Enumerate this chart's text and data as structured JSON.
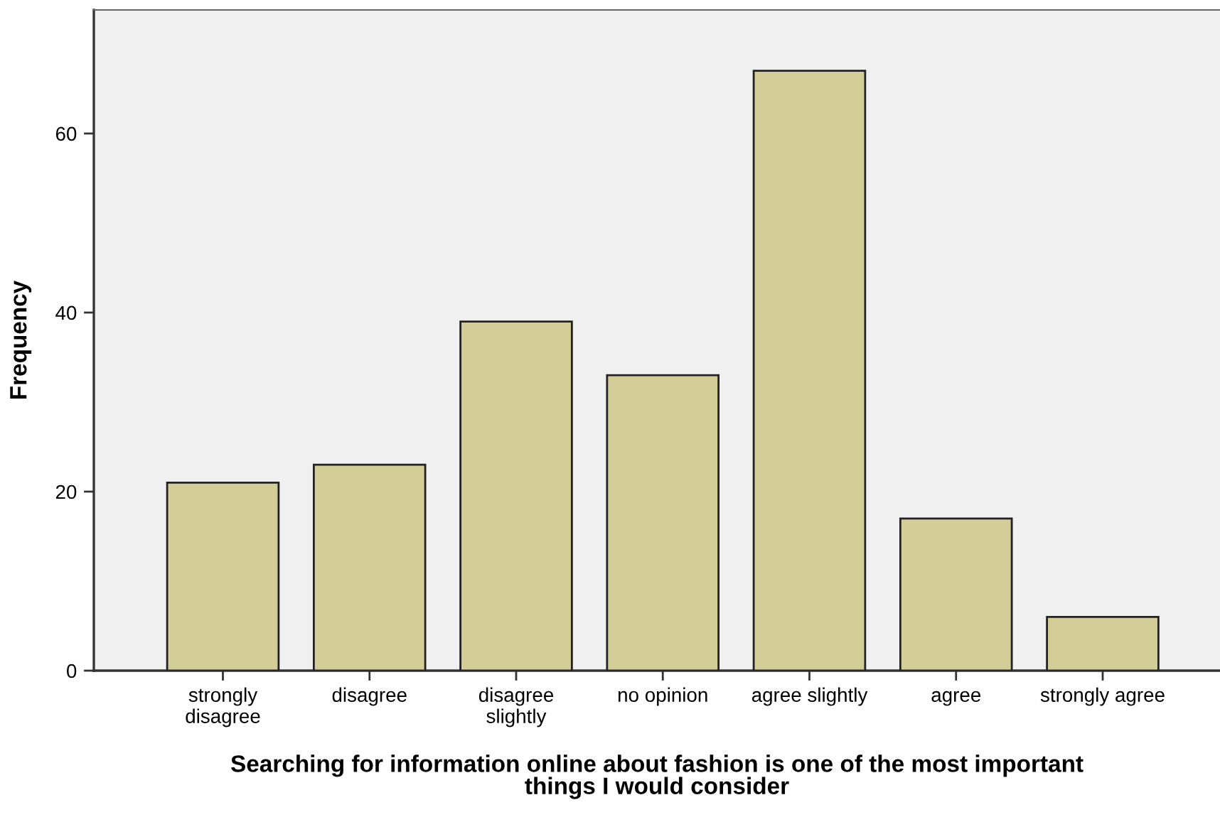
{
  "chart_data": {
    "type": "bar",
    "xlabel": "Searching for information online about fashion is one of the most important\nthings I would consider",
    "ylabel": "Frequency",
    "categories": [
      "strongly\ndisagree",
      "disagree",
      "disagree\nslightly",
      "no opinion",
      "agree slightly",
      "agree",
      "strongly agree"
    ],
    "values": [
      21,
      23,
      39,
      33,
      67,
      17,
      6
    ],
    "color": "#d3ce97",
    "ylim": [
      0,
      73.8
    ],
    "yticks": [
      0,
      20,
      40,
      60
    ],
    "grid": false
  }
}
